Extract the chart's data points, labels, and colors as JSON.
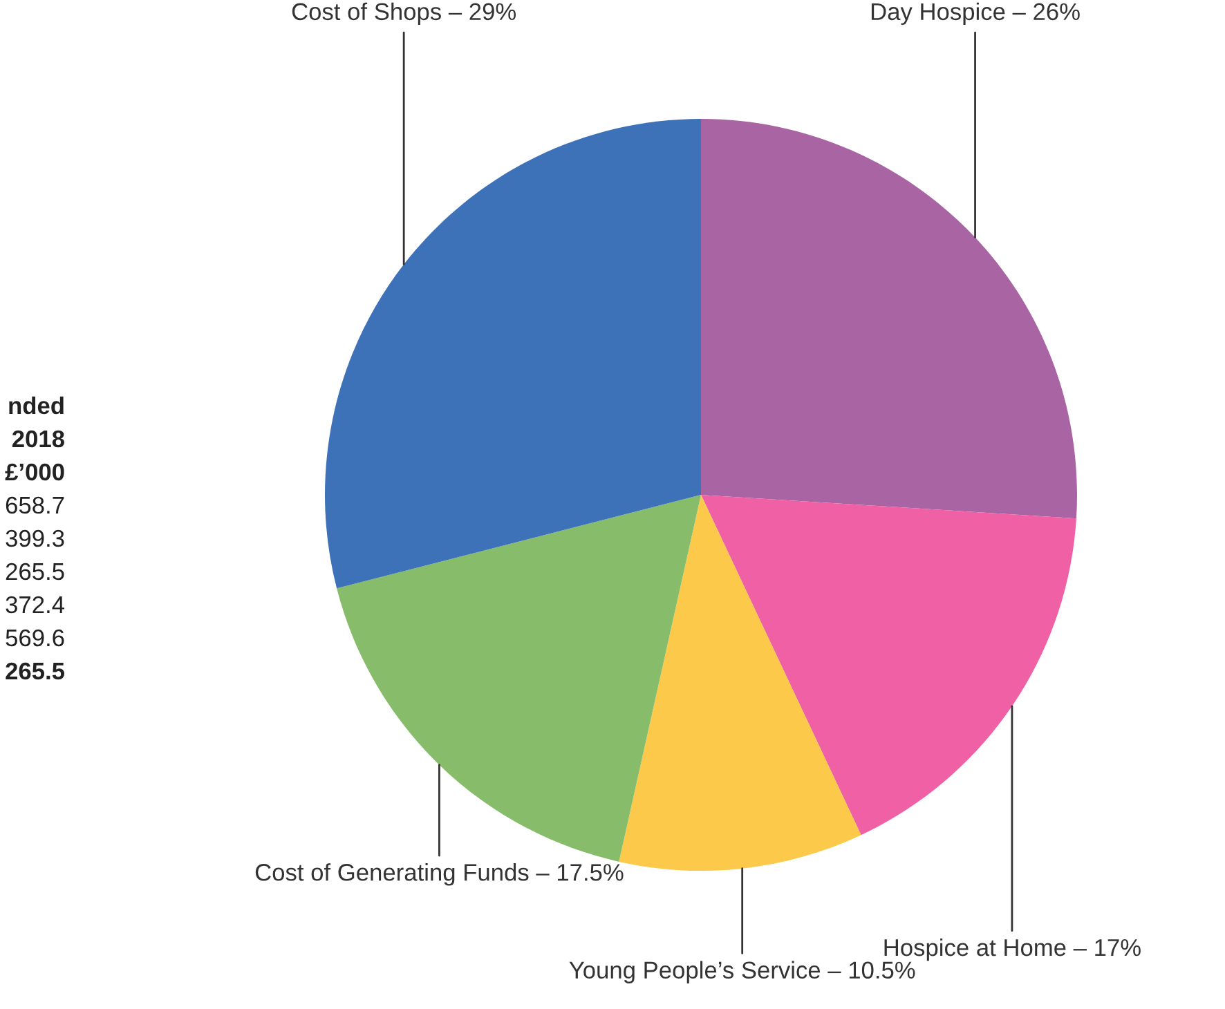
{
  "chart_data": {
    "type": "pie",
    "categories": [
      "Day Hospice – 26%",
      "Hospice at Home – 17%",
      "Young People’s Service – 10.5%",
      "Cost of Generating Funds – 17.5%",
      "Cost of Shops – 29%"
    ],
    "values": [
      26,
      17,
      10.5,
      17.5,
      29
    ],
    "colors": [
      "#a864a3",
      "#f060a4",
      "#fdc94a",
      "#86bc6a",
      "#3d72b8"
    ],
    "annotations": [
      "nded",
      "2018",
      "£’000",
      "658.7",
      "399.3",
      "265.5",
      "372.4",
      "569.6",
      "265.5"
    ],
    "legend": false
  }
}
